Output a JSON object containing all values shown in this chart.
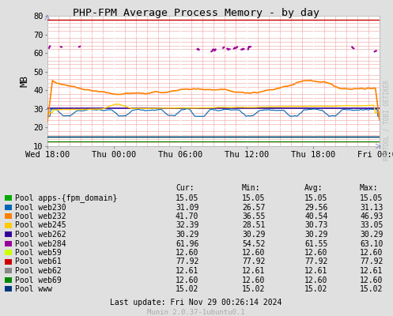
{
  "title": "PHP-FPM Average Process Memory - by day",
  "ylabel": "MB",
  "watermark": "RRDTOOL / TOBI OETIKER",
  "munin_version": "Munin 2.0.37-1ubuntu0.1",
  "last_update": "Last update: Fri Nov 29 00:26:14 2024",
  "ylim": [
    10,
    80
  ],
  "yticks": [
    10,
    20,
    30,
    40,
    50,
    60,
    70,
    80
  ],
  "x_ticks": [
    0,
    6,
    12,
    18,
    24,
    30
  ],
  "x_labels": [
    "Wed 18:00",
    "Thu 00:00",
    "Thu 06:00",
    "Thu 12:00",
    "Thu 18:00",
    "Fri 00:00"
  ],
  "bg_color": "#e0e0e0",
  "plot_bg": "#ffffff",
  "minor_grid_color": "#f0a0a0",
  "major_grid_color": "#ffffff",
  "legend": [
    {
      "name": "Pool apps-{fpm_domain}",
      "color": "#00aa00"
    },
    {
      "name": "Pool web230",
      "color": "#0066b3"
    },
    {
      "name": "Pool web232",
      "color": "#ff8000"
    },
    {
      "name": "Pool web245",
      "color": "#ffcc00"
    },
    {
      "name": "Pool web262",
      "color": "#330099"
    },
    {
      "name": "Pool web284",
      "color": "#990099"
    },
    {
      "name": "Pool web59",
      "color": "#ccff00"
    },
    {
      "name": "Pool web61",
      "color": "#cc0000"
    },
    {
      "name": "Pool web62",
      "color": "#888888"
    },
    {
      "name": "Pool web69",
      "color": "#008800"
    },
    {
      "name": "Pool www",
      "color": "#003580"
    }
  ],
  "table_cols": [
    "Cur:",
    "Min:",
    "Avg:",
    "Max:"
  ],
  "table_vals": [
    [
      "15.05",
      "15.05",
      "15.05",
      "15.05"
    ],
    [
      "31.09",
      "26.57",
      "29.56",
      "31.13"
    ],
    [
      "41.70",
      "36.55",
      "40.54",
      "46.93"
    ],
    [
      "32.39",
      "28.51",
      "30.73",
      "33.05"
    ],
    [
      "30.29",
      "30.29",
      "30.29",
      "30.29"
    ],
    [
      "61.96",
      "54.52",
      "61.55",
      "63.10"
    ],
    [
      "12.60",
      "12.60",
      "12.60",
      "12.60"
    ],
    [
      "77.92",
      "77.92",
      "77.92",
      "77.92"
    ],
    [
      "12.61",
      "12.61",
      "12.61",
      "12.61"
    ],
    [
      "12.60",
      "12.60",
      "12.60",
      "12.60"
    ],
    [
      "15.02",
      "15.02",
      "15.02",
      "15.02"
    ]
  ]
}
